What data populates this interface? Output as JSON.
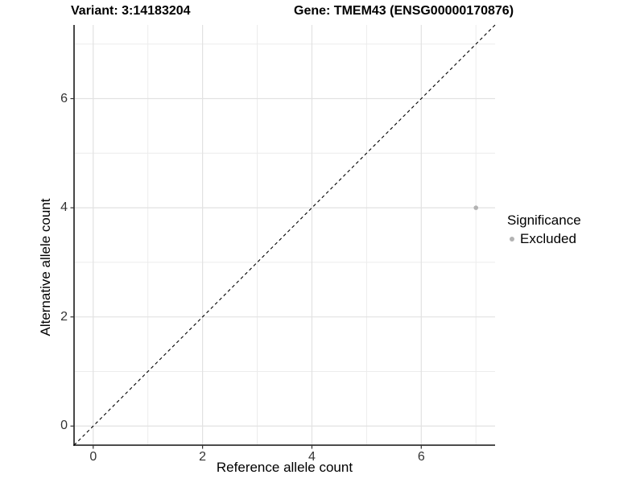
{
  "titles": {
    "variant": "Variant: 3:14183204",
    "gene": "Gene: TMEM43 (ENSG00000170876)"
  },
  "chart_data": {
    "type": "scatter",
    "title_left": "Variant: 3:14183204",
    "title_right": "Gene: TMEM43 (ENSG00000170876)",
    "xlabel": "Reference allele count",
    "ylabel": "Alternative allele count",
    "xlim": [
      -0.35,
      7.35
    ],
    "ylim": [
      -0.35,
      7.35
    ],
    "x_ticks": [
      0,
      2,
      4,
      6
    ],
    "y_ticks": [
      0,
      2,
      4,
      6
    ],
    "x_minor_gridlines": [
      1,
      3,
      5,
      7
    ],
    "y_minor_gridlines": [
      1,
      3,
      5,
      7
    ],
    "grid": true,
    "identity_line": {
      "style": "dashed",
      "color": "#000000",
      "from_xy": [
        -0.35,
        -0.35
      ],
      "to_xy": [
        7.35,
        7.35
      ]
    },
    "series": [
      {
        "name": "Excluded",
        "color": "#b3b3b3",
        "points": [
          {
            "x": 7,
            "y": 4
          }
        ]
      }
    ],
    "legend": {
      "title": "Significance",
      "position": "right",
      "items": [
        {
          "label": "Excluded",
          "color": "#b3b3b3",
          "marker": "dot-icon"
        }
      ]
    },
    "colors": {
      "background": "#ffffff",
      "axis_line": "#333333",
      "tick_label": "#333333",
      "major_gridline": "#e2e2e2",
      "minor_gridline": "#ececec"
    }
  }
}
